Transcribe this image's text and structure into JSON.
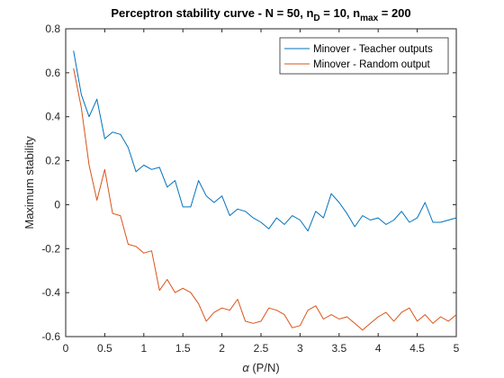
{
  "chart_data": {
    "type": "line",
    "title": {
      "main": "Perceptron stability curve - N = 50, n",
      "sub1": "D",
      "mid": " = 10, n",
      "sub2": "max",
      "end": " = 200"
    },
    "xlabel": {
      "symbol": "α",
      "text": " (P/N)"
    },
    "ylabel": "Maximum stability",
    "xlim": [
      0,
      5
    ],
    "ylim": [
      -0.6,
      0.8
    ],
    "xticks": [
      0,
      0.5,
      1,
      1.5,
      2,
      2.5,
      3,
      3.5,
      4,
      4.5,
      5
    ],
    "xtick_labels": [
      "0",
      "0.5",
      "1",
      "1.5",
      "2",
      "2.5",
      "3",
      "3.5",
      "4",
      "4.5",
      "5"
    ],
    "yticks": [
      -0.6,
      -0.4,
      -0.2,
      0,
      0.2,
      0.4,
      0.6,
      0.8
    ],
    "ytick_labels": [
      "-0.6",
      "-0.4",
      "-0.2",
      "0",
      "0.2",
      "0.4",
      "0.6",
      "0.8"
    ],
    "grid": false,
    "legend_position": "top-right",
    "x": [
      0.1,
      0.2,
      0.3,
      0.4,
      0.5,
      0.6,
      0.7,
      0.8,
      0.9,
      1.0,
      1.1,
      1.2,
      1.3,
      1.4,
      1.5,
      1.6,
      1.7,
      1.8,
      1.9,
      2.0,
      2.1,
      2.2,
      2.3,
      2.4,
      2.5,
      2.6,
      2.7,
      2.8,
      2.9,
      3.0,
      3.1,
      3.2,
      3.3,
      3.4,
      3.5,
      3.6,
      3.7,
      3.8,
      3.9,
      4.0,
      4.1,
      4.2,
      4.3,
      4.4,
      4.5,
      4.6,
      4.7,
      4.8,
      4.9,
      5.0
    ],
    "series": [
      {
        "name": "Minover - Teacher outputs",
        "color": "#0072BD",
        "values": [
          0.7,
          0.5,
          0.4,
          0.48,
          0.3,
          0.33,
          0.32,
          0.26,
          0.15,
          0.18,
          0.16,
          0.17,
          0.08,
          0.11,
          -0.01,
          -0.01,
          0.11,
          0.04,
          0.01,
          0.04,
          -0.05,
          -0.02,
          -0.03,
          -0.06,
          -0.08,
          -0.11,
          -0.06,
          -0.09,
          -0.05,
          -0.07,
          -0.12,
          -0.03,
          -0.06,
          0.05,
          0.01,
          -0.04,
          -0.1,
          -0.05,
          -0.07,
          -0.06,
          -0.09,
          -0.07,
          -0.03,
          -0.08,
          -0.06,
          0.01,
          -0.08,
          -0.08,
          -0.07,
          -0.06
        ]
      },
      {
        "name": "Minover - Random output",
        "color": "#D95319",
        "values": [
          0.62,
          0.44,
          0.18,
          0.02,
          0.16,
          -0.04,
          -0.05,
          -0.18,
          -0.19,
          -0.22,
          -0.21,
          -0.39,
          -0.34,
          -0.4,
          -0.38,
          -0.4,
          -0.45,
          -0.53,
          -0.49,
          -0.47,
          -0.48,
          -0.43,
          -0.53,
          -0.54,
          -0.53,
          -0.47,
          -0.48,
          -0.5,
          -0.56,
          -0.55,
          -0.48,
          -0.46,
          -0.52,
          -0.5,
          -0.52,
          -0.51,
          -0.54,
          -0.57,
          -0.54,
          -0.51,
          -0.49,
          -0.53,
          -0.49,
          -0.47,
          -0.53,
          -0.5,
          -0.54,
          -0.51,
          -0.53,
          -0.5
        ]
      }
    ]
  }
}
